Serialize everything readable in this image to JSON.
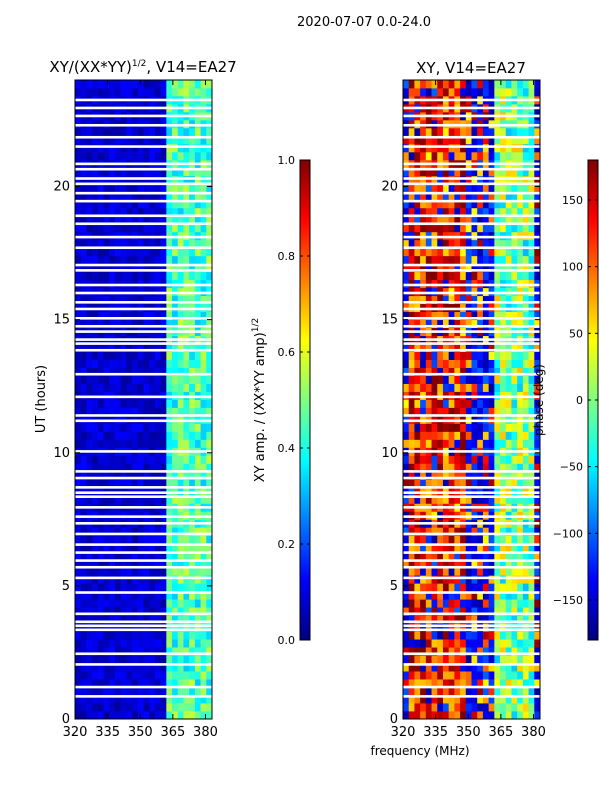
{
  "figure_title": "2020-07-07 0.0-24.0",
  "chart_data": [
    {
      "type": "heatmap",
      "title": "XY/(XX*YY)",
      "title_exp": "1/2",
      "title_suffix": ", V14=EA27",
      "xlabel": "",
      "ylabel": "UT (hours)",
      "xlim": [
        320,
        383
      ],
      "ylim": [
        0,
        24
      ],
      "xticks": [
        "320",
        "335",
        "350",
        "365",
        "380"
      ],
      "xtick_values": [
        320,
        335,
        350,
        365,
        380
      ],
      "yticks": [
        "0",
        "5",
        "10",
        "15",
        "20"
      ],
      "ytick_values": [
        0,
        5,
        10,
        15,
        20
      ],
      "colorbar": {
        "label": "XY amp. / (XX*YY amp)",
        "label_exp": "1/2",
        "range": [
          0.0,
          1.0
        ],
        "ticks": [
          "0.0",
          "0.2",
          "0.4",
          "0.6",
          "0.8",
          "1.0"
        ],
        "tick_values": [
          0.0,
          0.2,
          0.4,
          0.6,
          0.8,
          1.0
        ]
      },
      "colormap": "jet",
      "background_value": 0.05,
      "band_x": [
        363,
        382
      ],
      "band_value": 0.45,
      "gap_hours": [
        0.85,
        1.2,
        2.05,
        2.45,
        3.35,
        3.5,
        3.65,
        3.95,
        4.75,
        5.3,
        5.7,
        5.95,
        6.25,
        6.55,
        6.95,
        7.35,
        7.6,
        7.95,
        8.35,
        8.5,
        8.7,
        9.05,
        9.3,
        10.05,
        11.2,
        11.4,
        12.1,
        12.95,
        13.85,
        14.1,
        14.25,
        14.55,
        14.75,
        15.05,
        15.4,
        15.65,
        16.0,
        16.3,
        16.85,
        17.05,
        17.7,
        18.1,
        18.6,
        18.9,
        19.45,
        19.75,
        20.1,
        20.3,
        20.65,
        20.85,
        21.5,
        21.85,
        22.3,
        22.65,
        22.95,
        23.25
      ]
    },
    {
      "type": "heatmap",
      "title": "XY, V14=EA27",
      "xlabel": "frequency (MHz)",
      "ylabel": "",
      "xlim": [
        320,
        383
      ],
      "ylim": [
        0,
        24
      ],
      "xticks": [
        "320",
        "335",
        "350",
        "365",
        "380"
      ],
      "xtick_values": [
        320,
        335,
        350,
        365,
        380
      ],
      "yticks": [
        "0",
        "5",
        "10",
        "15",
        "20"
      ],
      "ytick_values": [
        0,
        5,
        10,
        15,
        20
      ],
      "colorbar": {
        "label": "phase (deg)",
        "range": [
          -180,
          180
        ],
        "ticks": [
          "−150",
          "−100",
          "−50",
          "0",
          "50",
          "100",
          "150"
        ],
        "tick_values": [
          -150,
          -100,
          -50,
          0,
          50,
          100,
          150
        ]
      },
      "colormap": "jet",
      "background_value": -150,
      "band_x": [
        362,
        381
      ],
      "band_value": 10,
      "gap_hours": [
        0.85,
        1.2,
        2.05,
        2.45,
        3.35,
        3.5,
        3.65,
        3.95,
        4.75,
        5.3,
        5.7,
        5.95,
        6.25,
        6.55,
        6.95,
        7.35,
        7.6,
        7.95,
        8.35,
        8.5,
        8.7,
        9.05,
        9.3,
        10.05,
        11.2,
        11.4,
        12.1,
        12.95,
        13.85,
        14.1,
        14.25,
        14.55,
        14.75,
        15.05,
        15.4,
        15.65,
        16.0,
        16.3,
        16.85,
        17.05,
        17.7,
        18.1,
        18.6,
        18.9,
        19.45,
        19.75,
        20.1,
        20.3,
        20.65,
        20.85,
        21.5,
        21.85,
        22.3,
        22.65,
        22.95,
        23.25
      ]
    }
  ]
}
